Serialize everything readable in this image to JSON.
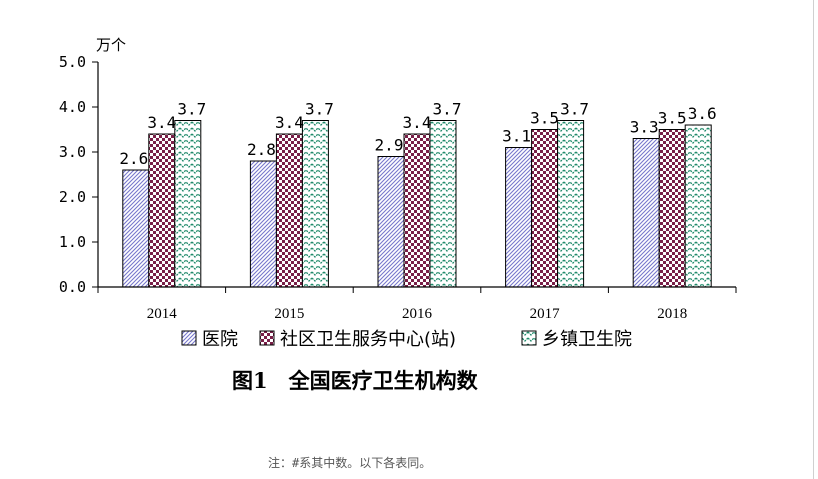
{
  "chart_data": {
    "type": "bar",
    "title": "图1　全国医疗卫生机构数",
    "unit": "万个",
    "categories": [
      "2014",
      "2015",
      "2016",
      "2017",
      "2018"
    ],
    "series": [
      {
        "name": "医院",
        "values": [
          2.6,
          2.8,
          2.9,
          3.1,
          3.3
        ],
        "labels": [
          "2.6",
          "2.8",
          "2.9",
          "3.1",
          "3.3"
        ],
        "color": "#b8b8e8",
        "pattern": "diagonal-hatch"
      },
      {
        "name": "社区卫生服务中心(站)",
        "values": [
          3.4,
          3.4,
          3.4,
          3.5,
          3.5
        ],
        "labels": [
          "3.4",
          "3.4",
          "3.4",
          "3.5",
          "3.5"
        ],
        "color": "#8a2a52",
        "pattern": "checker"
      },
      {
        "name": "乡镇卫生院",
        "values": [
          3.7,
          3.7,
          3.7,
          3.7,
          3.6
        ],
        "labels": [
          "3.7",
          "3.7",
          "3.7",
          "3.7",
          "3.6"
        ],
        "color": "#2a9a7a",
        "pattern": "zigzag"
      }
    ],
    "y_ticks": [
      "0.0",
      "1.0",
      "2.0",
      "3.0",
      "4.0",
      "5.0"
    ],
    "ylim": [
      0,
      5
    ],
    "grid": false,
    "legend": "bottom"
  },
  "note": "注：#系其中数。以下各表同。"
}
